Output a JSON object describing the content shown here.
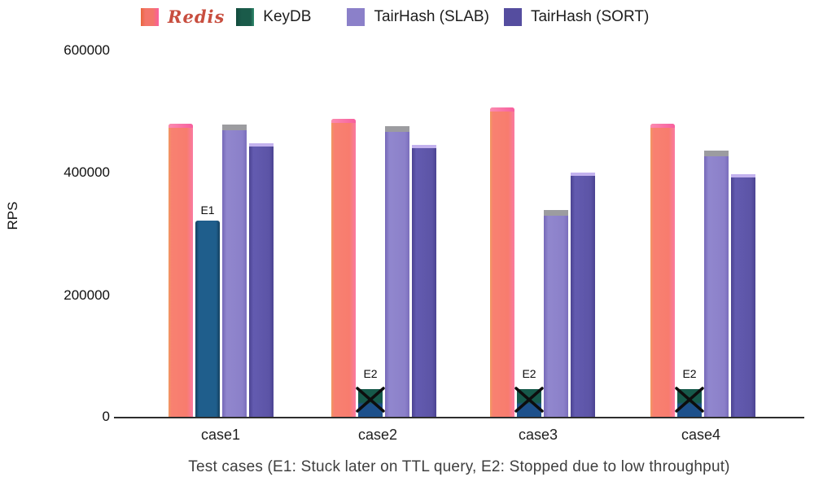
{
  "legend": {
    "position": "top",
    "items": [
      {
        "label": "Redis",
        "swatch": "redis",
        "color": "#f3756a"
      },
      {
        "label": "KeyDB",
        "swatch": "keydb",
        "color": "#1a5b4a"
      },
      {
        "label": "TairHash (SLAB)",
        "swatch": "slab",
        "color": "#8b80c9"
      },
      {
        "label": "TairHash (SORT)",
        "swatch": "sort",
        "color": "#554d9f"
      }
    ]
  },
  "chart_data": {
    "type": "bar",
    "title": "",
    "ylabel": "RPS",
    "caption": "Test cases (E1: Stuck later on TTL query, E2: Stopped due to low throughput)",
    "categories": [
      "case1",
      "case2",
      "case3",
      "case4"
    ],
    "series": [
      {
        "name": "Redis",
        "key": "redis",
        "color": "#f87c6e",
        "cap_color": "#f75f9e",
        "values": [
          480000,
          488000,
          507000,
          480000
        ]
      },
      {
        "name": "KeyDB",
        "key": "keydb",
        "color": "#1f5e8c",
        "cap_color": null,
        "values": [
          322000,
          46000,
          46000,
          46000
        ],
        "flags": [
          "E1",
          "E2",
          "E2",
          "E2"
        ],
        "crossed": [
          false,
          true,
          true,
          true
        ]
      },
      {
        "name": "TairHash (SLAB)",
        "key": "slab",
        "color": "#8b80c9",
        "cap_color": "#9c9ca0",
        "values": [
          479000,
          476000,
          339000,
          437000
        ]
      },
      {
        "name": "TairHash (SORT)",
        "key": "sort",
        "color": "#5c54a6",
        "cap_color": "#c3b2ee",
        "values": [
          448000,
          446000,
          401000,
          398000
        ]
      }
    ],
    "ylim": [
      0,
      600000
    ],
    "yticks": [
      "600000",
      "400000",
      "200000",
      "0"
    ],
    "grid": false,
    "legend_position": "top",
    "annotation_colors": {
      "cross": "#0d0d0d",
      "label_text": "#0c0c0c"
    }
  }
}
